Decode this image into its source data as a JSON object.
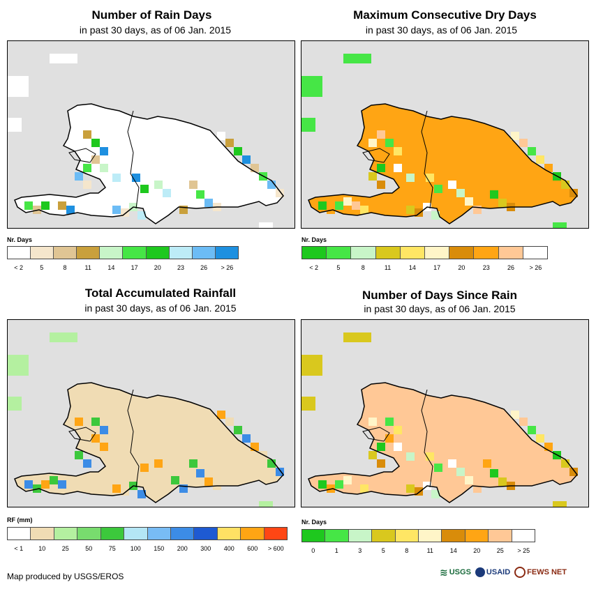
{
  "panels": [
    {
      "title": "Number of Rain Days",
      "subtitle": "in past 30 days, as of 06 Jan. 2015",
      "legend_title": "Nr. Days",
      "legend_colors": [
        "#ffffff",
        "#f5e6cc",
        "#e0c594",
        "#c9a03c",
        "#c8f5c8",
        "#46e646",
        "#1ec81e",
        "#bdecf7",
        "#6cbcf5",
        "#1e90e0"
      ],
      "legend_labels": [
        "< 2",
        "5",
        "8",
        "11",
        "14",
        "17",
        "20",
        "23",
        "26",
        "> 26"
      ],
      "base_color": "#ffffff"
    },
    {
      "title": "Maximum Consecutive Dry Days",
      "subtitle": "in past 30 days, as of 06 Jan. 2015",
      "legend_title": "Nr. Days",
      "legend_colors": [
        "#1ec81e",
        "#46e646",
        "#c8f5c8",
        "#d9c81e",
        "#ffe664",
        "#fff5c8",
        "#d98c0a",
        "#ffa514",
        "#ffc896",
        "#ffffff"
      ],
      "legend_labels": [
        "< 2",
        "5",
        "8",
        "11",
        "14",
        "17",
        "20",
        "23",
        "26",
        "> 26"
      ],
      "base_color": "#ffa514"
    },
    {
      "title": "Total Accumulated Rainfall",
      "subtitle": "in past 30 days, as of 06 Jan. 2015",
      "legend_title": "RF (mm)",
      "legend_colors": [
        "#ffffff",
        "#f0dcb4",
        "#b4f0a0",
        "#78dc6e",
        "#3cc83c",
        "#b4e6f5",
        "#78bcf5",
        "#3c8ce6",
        "#1e5ad2",
        "#ffe164",
        "#ffa514",
        "#ff4614"
      ],
      "legend_labels": [
        "< 1",
        "10",
        "25",
        "50",
        "75",
        "100",
        "150",
        "200",
        "300",
        "400",
        "600",
        "> 600"
      ],
      "base_color": "#f0dcb4"
    },
    {
      "title": "Number of Days Since Rain",
      "subtitle": "in past 30 days, as of 06 Jan. 2015",
      "legend_title": "Nr. Days",
      "legend_colors": [
        "#1ec81e",
        "#46e646",
        "#c8f5c8",
        "#d9c81e",
        "#ffe664",
        "#fff5c8",
        "#d98c0a",
        "#ffa514",
        "#ffc896",
        "#ffffff"
      ],
      "legend_labels": [
        "0",
        "1",
        "3",
        "5",
        "8",
        "11",
        "14",
        "20",
        "25",
        "> 25"
      ],
      "base_color": "#ffc896"
    }
  ],
  "footer": {
    "credit": "Map produced by USGS/EROS",
    "logos": [
      "USGS",
      "USAID",
      "FEWS NET"
    ]
  }
}
